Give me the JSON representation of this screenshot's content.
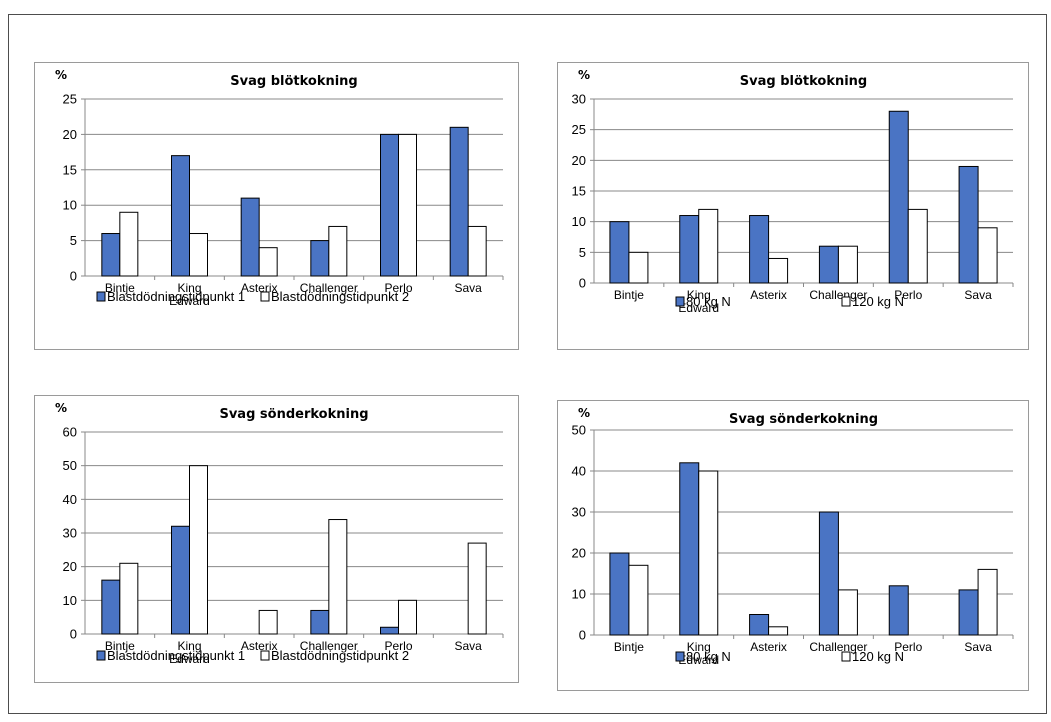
{
  "colors": {
    "series_a": "#4a74c4",
    "series_b": "#ffffff",
    "bar_stroke": "#000000",
    "grid": "#888888",
    "axis": "#888888"
  },
  "chart_data": [
    {
      "type": "bar",
      "title": "Svag blötkokning",
      "ylabel": "%",
      "ylim": [
        0,
        25
      ],
      "yticks": [
        0,
        5,
        10,
        15,
        20,
        25
      ],
      "grid": true,
      "legend": "bottom",
      "categories": [
        "Bintje",
        "King\nEdward",
        "Asterix",
        "Challenger",
        "Perlo",
        "Sava"
      ],
      "series": [
        {
          "name": "Blastdödningstidpunkt 1",
          "values": [
            6,
            17,
            11,
            5,
            20,
            21
          ]
        },
        {
          "name": "Blastdödningstidpunkt 2",
          "values": [
            9,
            6,
            4,
            7,
            20,
            7
          ]
        }
      ]
    },
    {
      "type": "bar",
      "title": "Svag blötkokning",
      "ylabel": "%",
      "ylim": [
        0,
        30
      ],
      "yticks": [
        0,
        5,
        10,
        15,
        20,
        25,
        30
      ],
      "grid": true,
      "legend": "bottom",
      "categories": [
        "Bintje",
        "King\nEdward",
        "Asterix",
        "Challenger",
        "Perlo",
        "Sava"
      ],
      "series": [
        {
          "name": "80 kg N",
          "values": [
            10,
            11,
            11,
            6,
            28,
            19
          ]
        },
        {
          "name": "120 kg N",
          "values": [
            5,
            12,
            4,
            6,
            12,
            9
          ]
        }
      ]
    },
    {
      "type": "bar",
      "title": "Svag sönderkokning",
      "ylabel": "%",
      "ylim": [
        0,
        60
      ],
      "yticks": [
        0,
        10,
        20,
        30,
        40,
        50,
        60
      ],
      "grid": true,
      "legend": "bottom",
      "categories": [
        "Bintje",
        "King\nEdward",
        "Asterix",
        "Challenger",
        "Perlo",
        "Sava"
      ],
      "series": [
        {
          "name": "Blastdödningstidpunkt 1",
          "values": [
            16,
            32,
            0,
            7,
            2,
            0
          ]
        },
        {
          "name": "Blastdödningstidpunkt 2",
          "values": [
            21,
            50,
            7,
            34,
            10,
            27
          ]
        }
      ]
    },
    {
      "type": "bar",
      "title": "Svag sönderkokning",
      "ylabel": "%",
      "ylim": [
        0,
        50
      ],
      "yticks": [
        0,
        10,
        20,
        30,
        40,
        50
      ],
      "grid": true,
      "legend": "bottom",
      "categories": [
        "Bintje",
        "King\nEdward",
        "Asterix",
        "Challenger",
        "Perlo",
        "Sava"
      ],
      "series": [
        {
          "name": "80 kg N",
          "values": [
            20,
            42,
            5,
            30,
            12,
            11
          ]
        },
        {
          "name": "120 kg N",
          "values": [
            17,
            40,
            2,
            11,
            0,
            16
          ]
        }
      ]
    }
  ]
}
